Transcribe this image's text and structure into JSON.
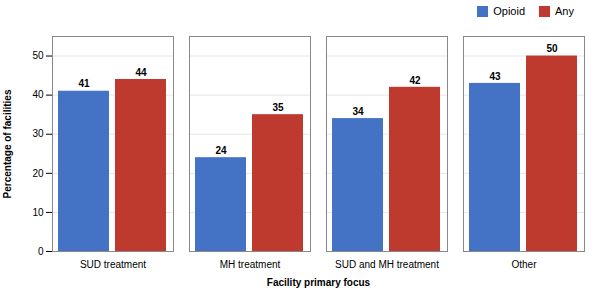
{
  "chart_data": {
    "type": "bar",
    "categories": [
      "SUD treatment",
      "MH treatment",
      "SUD and MH treatment",
      "Other"
    ],
    "series": [
      {
        "name": "Opioid",
        "color": "#4472C4",
        "values": [
          41,
          24,
          34,
          43
        ]
      },
      {
        "name": "Any",
        "color": "#BE3A2E",
        "values": [
          44,
          35,
          42,
          50
        ]
      }
    ],
    "xlabel": "Facility primary focus",
    "ylabel": "Percentage of facilities",
    "ylim": [
      0,
      55
    ],
    "yticks": [
      0,
      10,
      20,
      30,
      40,
      50
    ],
    "grid": true,
    "legend": "upper right",
    "data_labels": true
  }
}
